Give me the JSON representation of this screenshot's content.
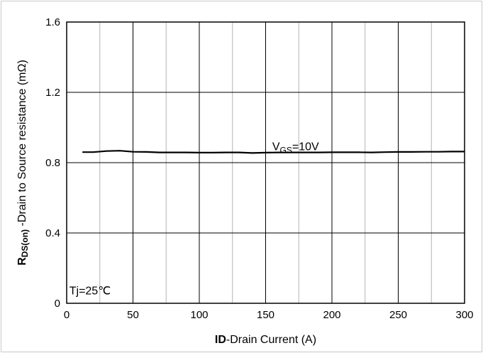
{
  "chart_data": {
    "type": "line",
    "xlabel_bold": "ID",
    "xlabel_rest": "-Drain Current (A)",
    "ylabel_bold_main": "R",
    "ylabel_bold_sub": "DS(on)",
    "ylabel_rest": " -Drain to Source resistance (mΩ)",
    "xlim": [
      0,
      300
    ],
    "ylim": [
      0,
      1.6
    ],
    "x_ticks": [
      0,
      50,
      100,
      150,
      200,
      250,
      300
    ],
    "x_tick_labels": [
      "0",
      "50",
      "100",
      "150",
      "200",
      "250",
      "300"
    ],
    "y_ticks": [
      0,
      0.4,
      0.8,
      1.2,
      1.6
    ],
    "y_tick_labels": [
      "0",
      "0.4",
      "0.8",
      "1.2",
      "1.6"
    ],
    "major_grid_x": [
      0,
      50,
      100,
      150,
      200,
      250,
      300
    ],
    "minor_grid_x": [
      25,
      75,
      125,
      175,
      225,
      275
    ],
    "grid": true,
    "series": [
      {
        "label_main": "V",
        "label_sub": "GS",
        "label_rest": "=10V",
        "label_at": [
          155,
          0.87
        ],
        "color": "#000000",
        "x": [
          12,
          20,
          30,
          40,
          50,
          60,
          70,
          80,
          90,
          100,
          110,
          120,
          130,
          140,
          150,
          160,
          170,
          180,
          190,
          200,
          210,
          220,
          230,
          240,
          250,
          260,
          270,
          280,
          290,
          300
        ],
        "y": [
          0.86,
          0.86,
          0.866,
          0.868,
          0.862,
          0.861,
          0.858,
          0.858,
          0.858,
          0.857,
          0.857,
          0.858,
          0.858,
          0.855,
          0.857,
          0.858,
          0.858,
          0.858,
          0.858,
          0.859,
          0.859,
          0.859,
          0.858,
          0.86,
          0.861,
          0.861,
          0.862,
          0.862,
          0.863,
          0.863
        ]
      }
    ],
    "annotations": [
      {
        "text": "Tj=25℃",
        "at": [
          2,
          0.05
        ]
      }
    ]
  }
}
